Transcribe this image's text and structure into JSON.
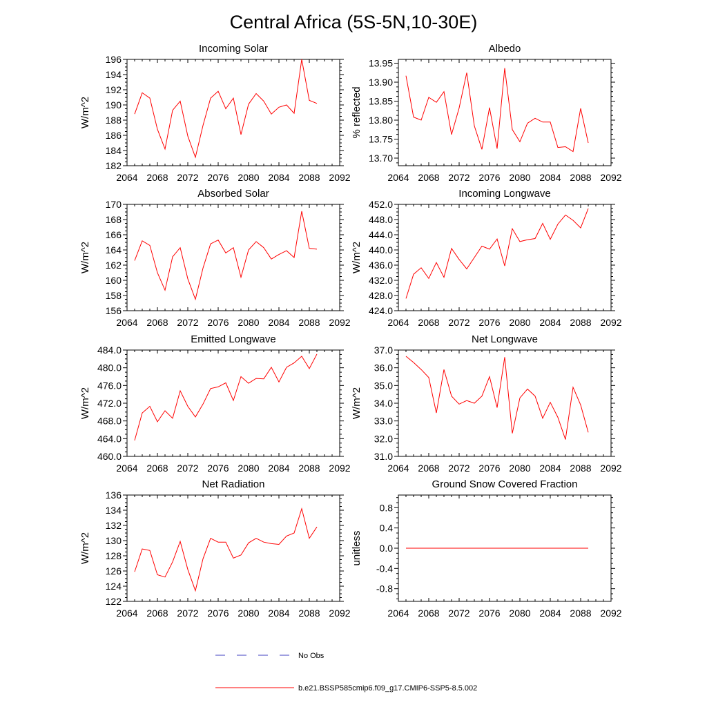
{
  "figure": {
    "title": "Central Africa (5S-5N,10-30E)"
  },
  "legend": {
    "items": [
      {
        "label": "No Obs",
        "color": "#4040c0",
        "style": "dashed"
      },
      {
        "label": "b.e21.BSSP585cmip6.f09_g17.CMIP6-SSP5-8.5.002",
        "color": "#ff0000",
        "style": "solid"
      }
    ]
  },
  "chart_data": [
    {
      "type": "line",
      "title": "Incoming Solar",
      "ylabel": "W/m^2",
      "xlim": [
        2064,
        2092
      ],
      "ylim": [
        182,
        196
      ],
      "xticks": [
        2064,
        2068,
        2072,
        2076,
        2080,
        2084,
        2088,
        2092
      ],
      "xtick_labels": [
        "2064",
        "2068",
        "2072",
        "2076",
        "2080",
        "2084",
        "2088",
        "2092"
      ],
      "yticks": [
        182,
        184,
        186,
        188,
        190,
        192,
        194,
        196
      ],
      "ytick_labels": [
        "182",
        "184",
        "186",
        "188",
        "190",
        "192",
        "194",
        "196"
      ],
      "x": [
        2065,
        2066,
        2067,
        2068,
        2069,
        2070,
        2071,
        2072,
        2073,
        2074,
        2075,
        2076,
        2077,
        2078,
        2079,
        2080,
        2081,
        2082,
        2083,
        2084,
        2085,
        2086,
        2087,
        2088,
        2089
      ],
      "values": [
        188.8,
        191.6,
        190.9,
        186.8,
        184.2,
        189.3,
        190.5,
        185.9,
        183.1,
        187.3,
        190.9,
        191.8,
        189.5,
        190.9,
        186.1,
        190.1,
        191.5,
        190.5,
        188.8,
        189.7,
        190.0,
        188.9,
        196.0,
        190.6,
        190.2
      ],
      "color": "#ff0000"
    },
    {
      "type": "line",
      "title": "Albedo",
      "ylabel": "% reflected",
      "xlim": [
        2064,
        2092
      ],
      "ylim": [
        13.68,
        13.96
      ],
      "xticks": [
        2064,
        2068,
        2072,
        2076,
        2080,
        2084,
        2088,
        2092
      ],
      "xtick_labels": [
        "2064",
        "2068",
        "2072",
        "2076",
        "2080",
        "2084",
        "2088",
        "2092"
      ],
      "yticks": [
        13.7,
        13.75,
        13.8,
        13.85,
        13.9,
        13.95
      ],
      "ytick_labels": [
        "13.70",
        "13.75",
        "13.80",
        "13.85",
        "13.90",
        "13.95"
      ],
      "x": [
        2065,
        2066,
        2067,
        2068,
        2069,
        2070,
        2071,
        2072,
        2073,
        2074,
        2075,
        2076,
        2077,
        2078,
        2079,
        2080,
        2081,
        2082,
        2083,
        2084,
        2085,
        2086,
        2087,
        2088,
        2089
      ],
      "values": [
        13.917,
        13.808,
        13.8,
        13.86,
        13.847,
        13.875,
        13.762,
        13.832,
        13.925,
        13.785,
        13.723,
        13.833,
        13.725,
        13.937,
        13.775,
        13.743,
        13.792,
        13.805,
        13.795,
        13.795,
        13.728,
        13.73,
        13.717,
        13.831,
        13.74
      ],
      "color": "#ff0000"
    },
    {
      "type": "line",
      "title": "Absorbed Solar",
      "ylabel": "W/m^2",
      "xlim": [
        2064,
        2092
      ],
      "ylim": [
        156,
        170
      ],
      "xticks": [
        2064,
        2068,
        2072,
        2076,
        2080,
        2084,
        2088,
        2092
      ],
      "xtick_labels": [
        "2064",
        "2068",
        "2072",
        "2076",
        "2080",
        "2084",
        "2088",
        "2092"
      ],
      "yticks": [
        156,
        158,
        160,
        162,
        164,
        166,
        168,
        170
      ],
      "ytick_labels": [
        "156",
        "158",
        "160",
        "162",
        "164",
        "166",
        "168",
        "170"
      ],
      "x": [
        2065,
        2066,
        2067,
        2068,
        2069,
        2070,
        2071,
        2072,
        2073,
        2074,
        2075,
        2076,
        2077,
        2078,
        2079,
        2080,
        2081,
        2082,
        2083,
        2084,
        2085,
        2086,
        2087,
        2088,
        2089
      ],
      "values": [
        162.6,
        165.2,
        164.6,
        161.0,
        158.7,
        163.1,
        164.3,
        160.2,
        157.5,
        161.6,
        164.8,
        165.3,
        163.6,
        164.3,
        160.4,
        164.0,
        165.1,
        164.3,
        162.8,
        163.4,
        163.9,
        163.0,
        169.1,
        164.2,
        164.1
      ],
      "color": "#ff0000"
    },
    {
      "type": "line",
      "title": "Incoming Longwave",
      "ylabel": "W/m^2",
      "xlim": [
        2064,
        2092
      ],
      "ylim": [
        424,
        452
      ],
      "xticks": [
        2064,
        2068,
        2072,
        2076,
        2080,
        2084,
        2088,
        2092
      ],
      "xtick_labels": [
        "2064",
        "2068",
        "2072",
        "2076",
        "2080",
        "2084",
        "2088",
        "2092"
      ],
      "yticks": [
        424,
        428,
        432,
        436,
        440,
        444,
        448,
        452
      ],
      "ytick_labels": [
        "424.0",
        "428.0",
        "432.0",
        "436.0",
        "440.0",
        "444.0",
        "448.0",
        "452.0"
      ],
      "x": [
        2065,
        2066,
        2067,
        2068,
        2069,
        2070,
        2071,
        2072,
        2073,
        2074,
        2075,
        2076,
        2077,
        2078,
        2079,
        2080,
        2081,
        2082,
        2083,
        2084,
        2085,
        2086,
        2087,
        2088,
        2089
      ],
      "values": [
        427.2,
        433.6,
        435.3,
        432.5,
        436.7,
        432.8,
        440.4,
        437.5,
        435.0,
        438.0,
        441.0,
        440.2,
        442.9,
        435.8,
        445.6,
        442.2,
        442.7,
        443.0,
        447.0,
        442.8,
        446.8,
        449.2,
        447.8,
        445.8,
        450.9
      ],
      "color": "#ff0000"
    },
    {
      "type": "line",
      "title": "Emitted Longwave",
      "ylabel": "W/m^2",
      "xlim": [
        2064,
        2092
      ],
      "ylim": [
        460,
        484
      ],
      "xticks": [
        2064,
        2068,
        2072,
        2076,
        2080,
        2084,
        2088,
        2092
      ],
      "xtick_labels": [
        "2064",
        "2068",
        "2072",
        "2076",
        "2080",
        "2084",
        "2088",
        "2092"
      ],
      "yticks": [
        460,
        464,
        468,
        472,
        476,
        480,
        484
      ],
      "ytick_labels": [
        "460.0",
        "464.0",
        "468.0",
        "472.0",
        "476.0",
        "480.0",
        "484.0"
      ],
      "x": [
        2065,
        2066,
        2067,
        2068,
        2069,
        2070,
        2071,
        2072,
        2073,
        2074,
        2075,
        2076,
        2077,
        2078,
        2079,
        2080,
        2081,
        2082,
        2083,
        2084,
        2085,
        2086,
        2087,
        2088,
        2089
      ],
      "values": [
        463.6,
        469.8,
        471.3,
        467.8,
        470.3,
        468.6,
        474.8,
        471.3,
        468.9,
        471.8,
        475.3,
        475.7,
        476.6,
        472.6,
        478.0,
        476.5,
        477.6,
        477.5,
        480.1,
        476.8,
        480.1,
        481.1,
        482.6,
        479.8,
        483.1
      ],
      "color": "#ff0000"
    },
    {
      "type": "line",
      "title": "Net Longwave",
      "ylabel": "W/m^2",
      "xlim": [
        2064,
        2092
      ],
      "ylim": [
        31,
        37
      ],
      "xticks": [
        2064,
        2068,
        2072,
        2076,
        2080,
        2084,
        2088,
        2092
      ],
      "xtick_labels": [
        "2064",
        "2068",
        "2072",
        "2076",
        "2080",
        "2084",
        "2088",
        "2092"
      ],
      "yticks": [
        31,
        32,
        33,
        34,
        35,
        36,
        37
      ],
      "ytick_labels": [
        "31.0",
        "32.0",
        "33.0",
        "34.0",
        "35.0",
        "36.0",
        "37.0"
      ],
      "x": [
        2065,
        2066,
        2067,
        2068,
        2069,
        2070,
        2071,
        2072,
        2073,
        2074,
        2075,
        2076,
        2077,
        2078,
        2079,
        2080,
        2081,
        2082,
        2083,
        2084,
        2085,
        2086,
        2087,
        2088,
        2089
      ],
      "values": [
        36.65,
        36.3,
        35.9,
        35.45,
        33.45,
        35.9,
        34.4,
        33.95,
        34.15,
        34.0,
        34.4,
        35.5,
        33.75,
        36.6,
        32.3,
        34.3,
        34.8,
        34.4,
        33.15,
        34.05,
        33.2,
        31.95,
        34.9,
        33.9,
        32.35
      ],
      "color": "#ff0000"
    },
    {
      "type": "line",
      "title": "Net Radiation",
      "ylabel": "W/m^2",
      "xlim": [
        2064,
        2092
      ],
      "ylim": [
        122,
        136
      ],
      "xticks": [
        2064,
        2068,
        2072,
        2076,
        2080,
        2084,
        2088,
        2092
      ],
      "xtick_labels": [
        "2064",
        "2068",
        "2072",
        "2076",
        "2080",
        "2084",
        "2088",
        "2092"
      ],
      "yticks": [
        122,
        124,
        126,
        128,
        130,
        132,
        134,
        136
      ],
      "ytick_labels": [
        "122",
        "124",
        "126",
        "128",
        "130",
        "132",
        "134",
        "136"
      ],
      "x": [
        2065,
        2066,
        2067,
        2068,
        2069,
        2070,
        2071,
        2072,
        2073,
        2074,
        2075,
        2076,
        2077,
        2078,
        2079,
        2080,
        2081,
        2082,
        2083,
        2084,
        2085,
        2086,
        2087,
        2088,
        2089
      ],
      "values": [
        125.9,
        128.9,
        128.7,
        125.5,
        125.2,
        127.2,
        129.9,
        126.2,
        123.4,
        127.6,
        130.3,
        129.8,
        129.8,
        127.7,
        128.1,
        129.7,
        130.3,
        129.8,
        129.6,
        129.5,
        130.6,
        131.0,
        134.2,
        130.3,
        131.8
      ],
      "color": "#ff0000"
    },
    {
      "type": "line",
      "title": "Ground Snow Covered Fraction",
      "ylabel": "unitless",
      "xlim": [
        2064,
        2092
      ],
      "ylim": [
        -1.05,
        1.05
      ],
      "xticks": [
        2064,
        2068,
        2072,
        2076,
        2080,
        2084,
        2088,
        2092
      ],
      "xtick_labels": [
        "2064",
        "2068",
        "2072",
        "2076",
        "2080",
        "2084",
        "2088",
        "2092"
      ],
      "yticks": [
        -0.8,
        -0.4,
        0.0,
        0.4,
        0.8
      ],
      "ytick_labels": [
        "-0.8",
        "-0.4",
        "0.0",
        "0.4",
        "0.8"
      ],
      "x": [
        2065,
        2066,
        2067,
        2068,
        2069,
        2070,
        2071,
        2072,
        2073,
        2074,
        2075,
        2076,
        2077,
        2078,
        2079,
        2080,
        2081,
        2082,
        2083,
        2084,
        2085,
        2086,
        2087,
        2088,
        2089
      ],
      "values": [
        0,
        0,
        0,
        0,
        0,
        0,
        0,
        0,
        0,
        0,
        0,
        0,
        0,
        0,
        0,
        0,
        0,
        0,
        0,
        0,
        0,
        0,
        0,
        0,
        0
      ],
      "color": "#ff0000"
    }
  ]
}
